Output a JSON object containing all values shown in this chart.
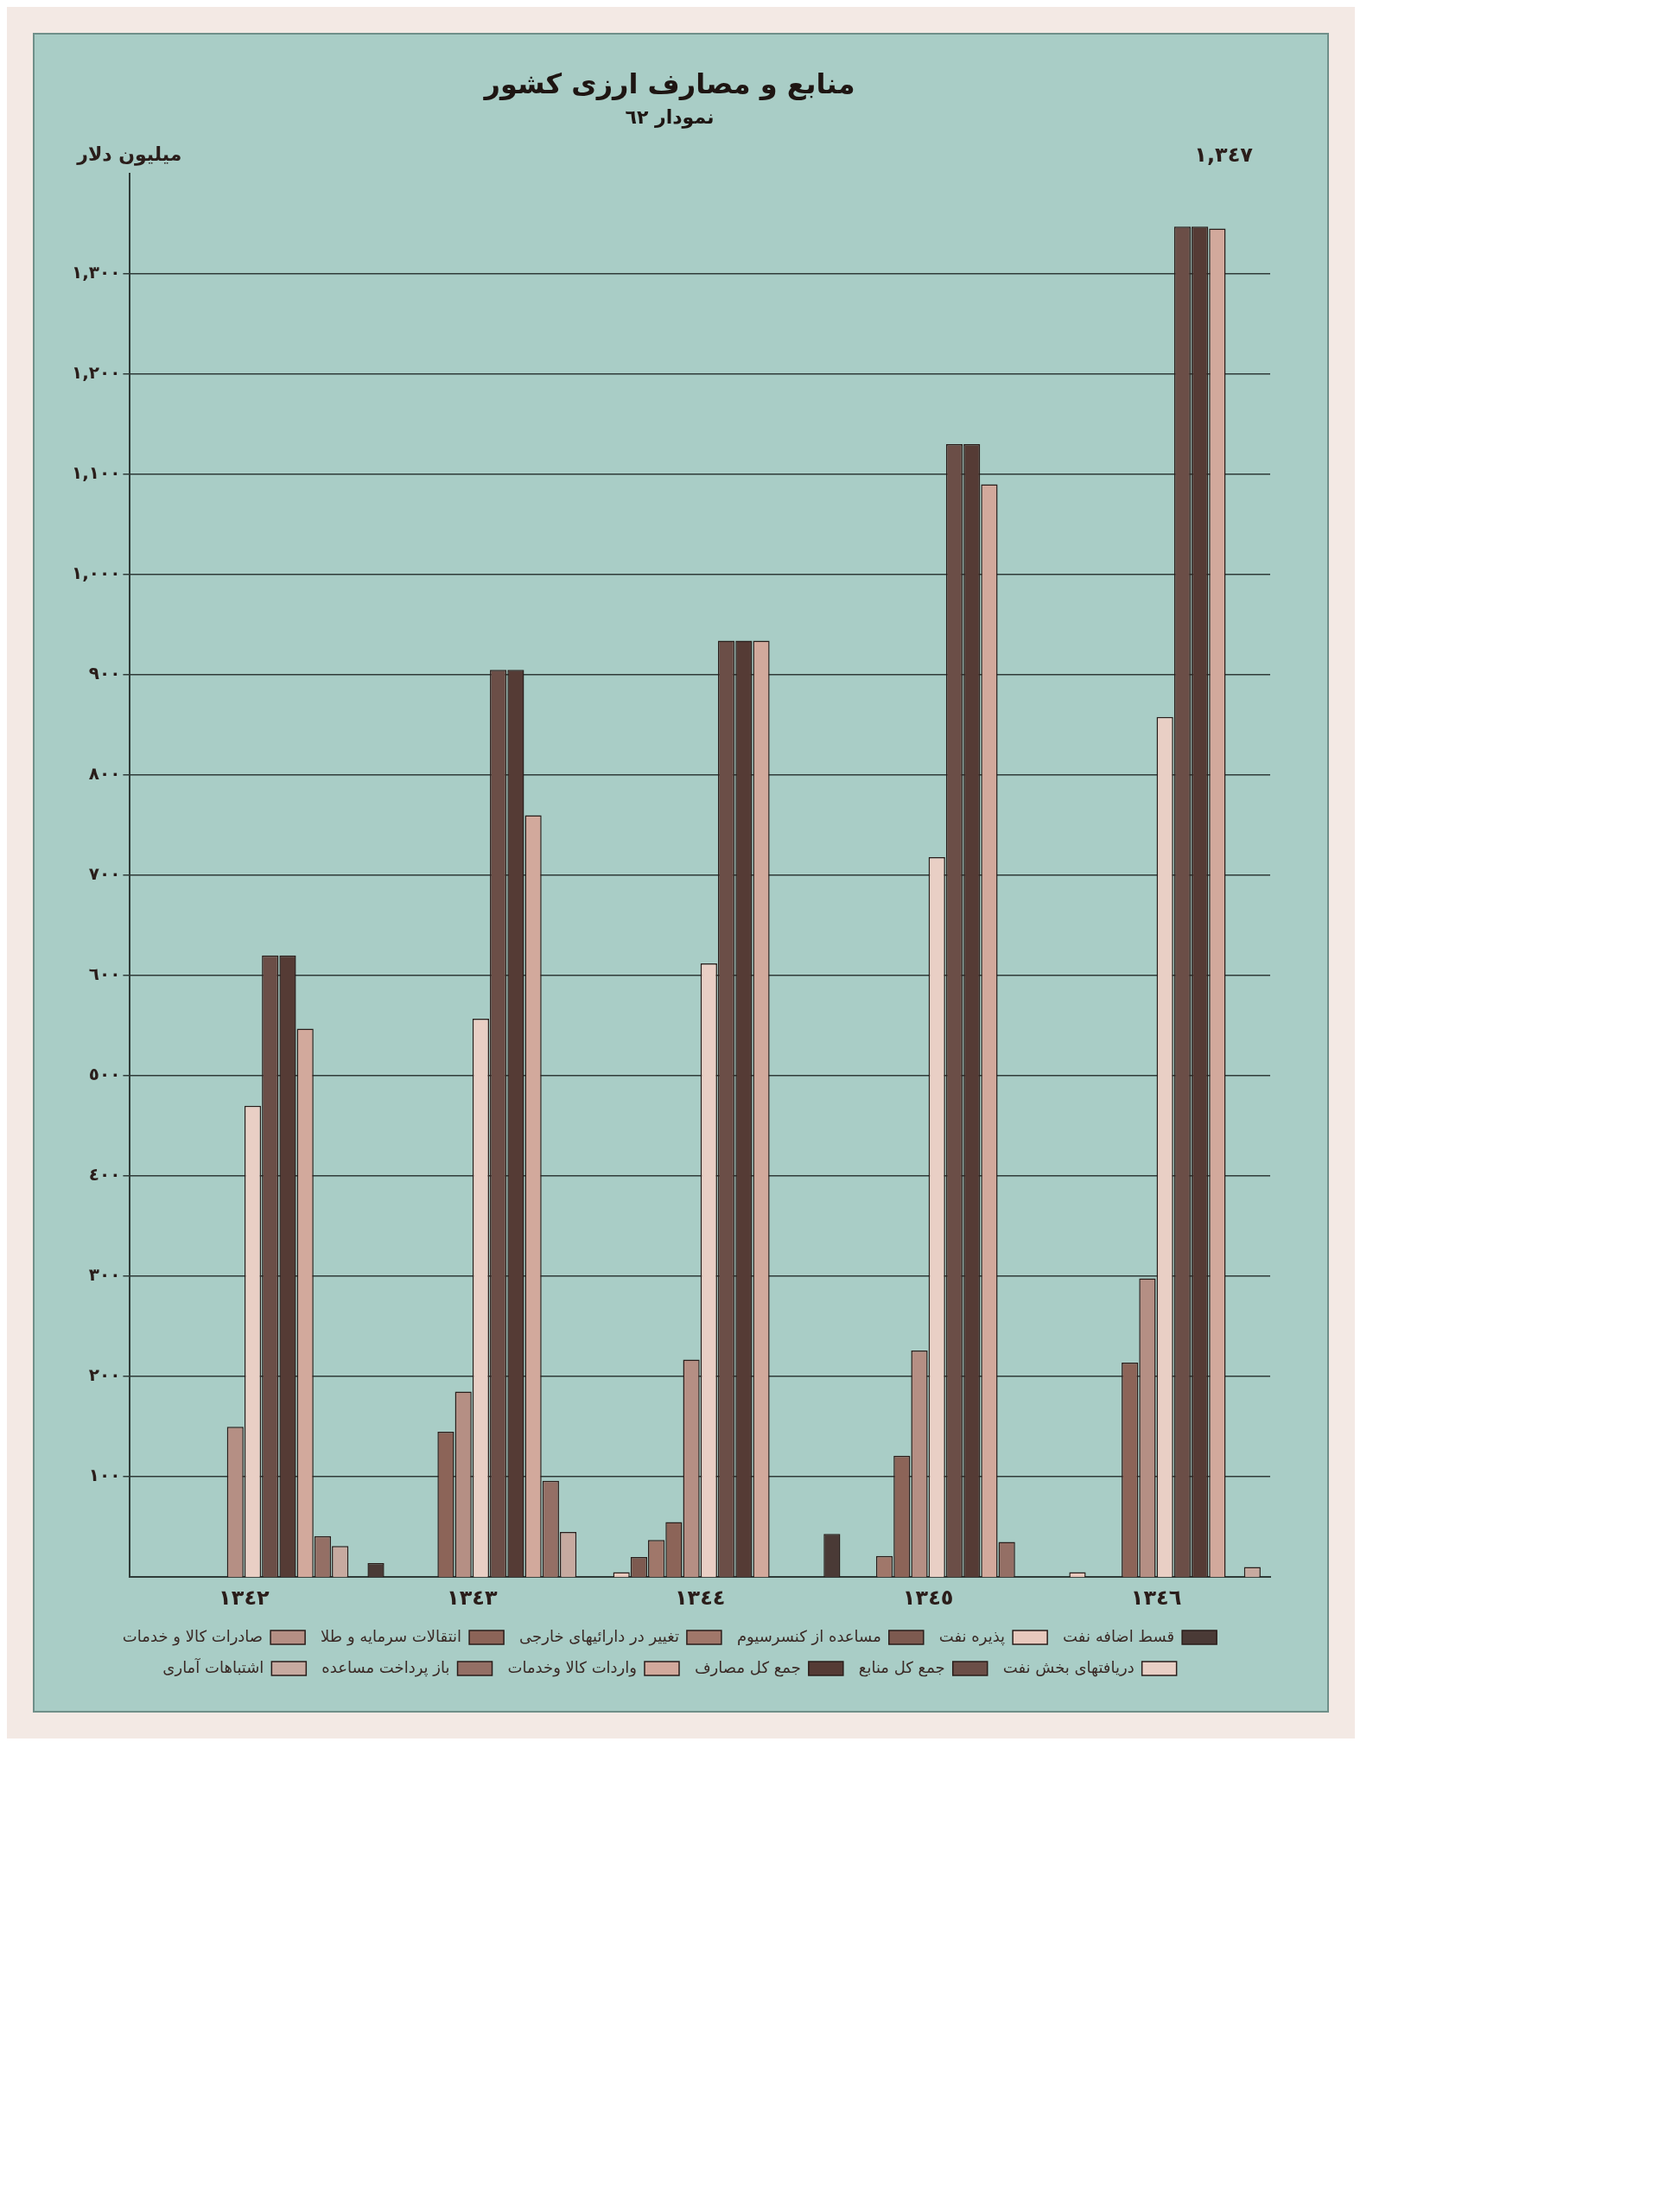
{
  "chart_data": {
    "type": "bar",
    "title": "منابع و مصارف ارزی کشور",
    "subtitle": "نمودار ٦٢",
    "ylabel": "میلیون دلار",
    "categories": [
      "١٣٤٢",
      "١٣٤٣",
      "١٣٤٤",
      "١٣٤٥",
      "١٣٤٦"
    ],
    "series": [
      {
        "name": "قسط اضافه نفت",
        "color": "#4a3a36",
        "values": [
          null,
          14,
          null,
          43,
          null
        ]
      },
      {
        "name": "پذیره نفت",
        "color": "#e8c9bd",
        "values": [
          null,
          null,
          5,
          null,
          5
        ]
      },
      {
        "name": "مساعده از کنسرسیوم",
        "color": "#7d5a50",
        "values": [
          null,
          null,
          20,
          null,
          null
        ]
      },
      {
        "name": "تغییر در دارائیهای خارجی",
        "color": "#a0776a",
        "values": [
          null,
          null,
          37,
          21,
          null
        ]
      },
      {
        "name": "انتقالات سرمایه و طلا",
        "color": "#8c6458",
        "values": [
          null,
          145,
          55,
          121,
          214
        ]
      },
      {
        "name": "صادرات کالا و خدمات",
        "color": "#b58f84",
        "values": [
          150,
          185,
          217,
          226,
          298
        ]
      },
      {
        "name": "دریافتهای بخش نفت",
        "color": "#e9cfc5",
        "values": [
          470,
          557,
          612,
          718,
          858
        ]
      },
      {
        "name": "جمع کل منابع",
        "color": "#6b4e47",
        "values": [
          620,
          905,
          934,
          1130,
          1347
        ]
      },
      {
        "name": "جمع کل مصارف",
        "color": "#553b35",
        "values": [
          620,
          905,
          934,
          1130,
          1347
        ]
      },
      {
        "name": "واردات کالا وخدمات",
        "color": "#d2a99c",
        "values": [
          547,
          760,
          934,
          1090,
          1345
        ]
      },
      {
        "name": "باز پرداخت مساعده",
        "color": "#946f65",
        "values": [
          41,
          96,
          null,
          35,
          null
        ]
      },
      {
        "name": "اشتباهات آماری",
        "color": "#c7aaa0",
        "values": [
          31,
          45,
          null,
          null,
          10
        ]
      }
    ],
    "ylim": [
      0,
      1400
    ],
    "yticks": [
      {
        "value": 100,
        "label": "١٠٠"
      },
      {
        "value": 200,
        "label": "٢٠٠"
      },
      {
        "value": 300,
        "label": "٣٠٠"
      },
      {
        "value": 400,
        "label": "٤٠٠"
      },
      {
        "value": 500,
        "label": "٥٠٠"
      },
      {
        "value": 600,
        "label": "٦٠٠"
      },
      {
        "value": 700,
        "label": "٧٠٠"
      },
      {
        "value": 800,
        "label": "٨٠٠"
      },
      {
        "value": 900,
        "label": "٩٠٠"
      },
      {
        "value": 1000,
        "label": "١,٠٠٠"
      },
      {
        "value": 1100,
        "label": "١,١٠٠"
      },
      {
        "value": 1200,
        "label": "١,٢٠٠"
      },
      {
        "value": 1300,
        "label": "١,٣٠٠"
      }
    ],
    "annotations": [
      "١,٣٤٧"
    ],
    "grid": "y",
    "legend": "bottom"
  }
}
